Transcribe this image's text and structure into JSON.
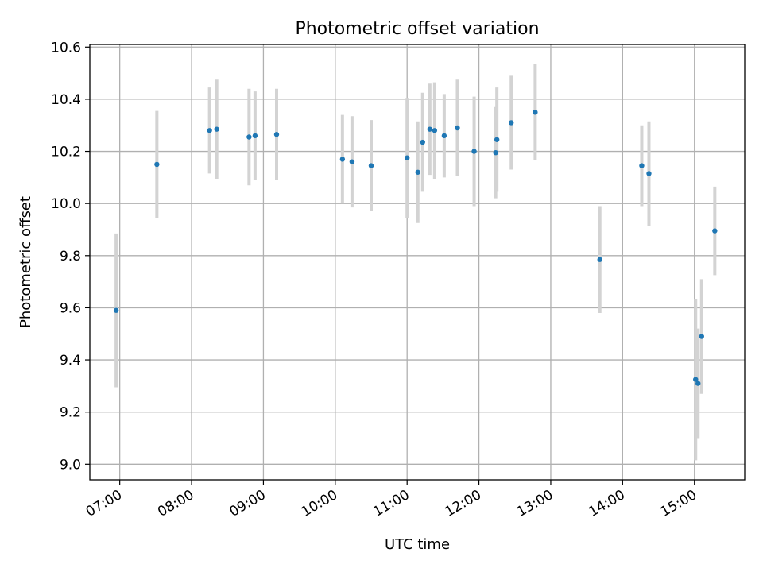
{
  "chart_data": {
    "type": "scatter",
    "title": "Photometric offset variation",
    "xlabel": "UTC time",
    "ylabel": "Photometric offset",
    "xlim": [
      "06:35",
      "15:42"
    ],
    "ylim": [
      8.94,
      10.61
    ],
    "grid": true,
    "x_ticks": [
      "07:00",
      "08:00",
      "09:00",
      "10:00",
      "11:00",
      "12:00",
      "13:00",
      "14:00",
      "15:00"
    ],
    "y_ticks": [
      "9.0",
      "9.2",
      "9.4",
      "9.6",
      "9.8",
      "10.0",
      "10.2",
      "10.4",
      "10.6"
    ],
    "point_color": "#1f77b4",
    "error_color": "#d3d3d3",
    "series": [
      {
        "points": [
          {
            "t": "06:57",
            "y": 9.59,
            "err": 0.295
          },
          {
            "t": "07:31",
            "y": 10.15,
            "err": 0.205
          },
          {
            "t": "08:15",
            "y": 10.28,
            "err": 0.165
          },
          {
            "t": "08:21",
            "y": 10.285,
            "err": 0.19
          },
          {
            "t": "08:48",
            "y": 10.255,
            "err": 0.185
          },
          {
            "t": "08:53",
            "y": 10.26,
            "err": 0.17
          },
          {
            "t": "09:11",
            "y": 10.265,
            "err": 0.175
          },
          {
            "t": "10:06",
            "y": 10.17,
            "err": 0.17
          },
          {
            "t": "10:14",
            "y": 10.16,
            "err": 0.175
          },
          {
            "t": "10:30",
            "y": 10.145,
            "err": 0.175
          },
          {
            "t": "11:00",
            "y": 10.175,
            "err": 0.23
          },
          {
            "t": "11:09",
            "y": 10.12,
            "err": 0.195
          },
          {
            "t": "11:13",
            "y": 10.235,
            "err": 0.19
          },
          {
            "t": "11:19",
            "y": 10.285,
            "err": 0.175
          },
          {
            "t": "11:23",
            "y": 10.28,
            "err": 0.185
          },
          {
            "t": "11:31",
            "y": 10.26,
            "err": 0.16
          },
          {
            "t": "11:42",
            "y": 10.29,
            "err": 0.185
          },
          {
            "t": "11:56",
            "y": 10.2,
            "err": 0.21
          },
          {
            "t": "12:14",
            "y": 10.195,
            "err": 0.175
          },
          {
            "t": "12:15",
            "y": 10.245,
            "err": 0.2
          },
          {
            "t": "12:27",
            "y": 10.31,
            "err": 0.18
          },
          {
            "t": "12:47",
            "y": 10.35,
            "err": 0.185
          },
          {
            "t": "13:41",
            "y": 9.785,
            "err": 0.205
          },
          {
            "t": "14:16",
            "y": 10.145,
            "err": 0.155
          },
          {
            "t": "14:22",
            "y": 10.115,
            "err": 0.2
          },
          {
            "t": "15:01",
            "y": 9.325,
            "err": 0.31
          },
          {
            "t": "15:03",
            "y": 9.31,
            "err": 0.21
          },
          {
            "t": "15:06",
            "y": 9.49,
            "err": 0.22
          },
          {
            "t": "15:17",
            "y": 9.895,
            "err": 0.17
          }
        ]
      }
    ]
  }
}
